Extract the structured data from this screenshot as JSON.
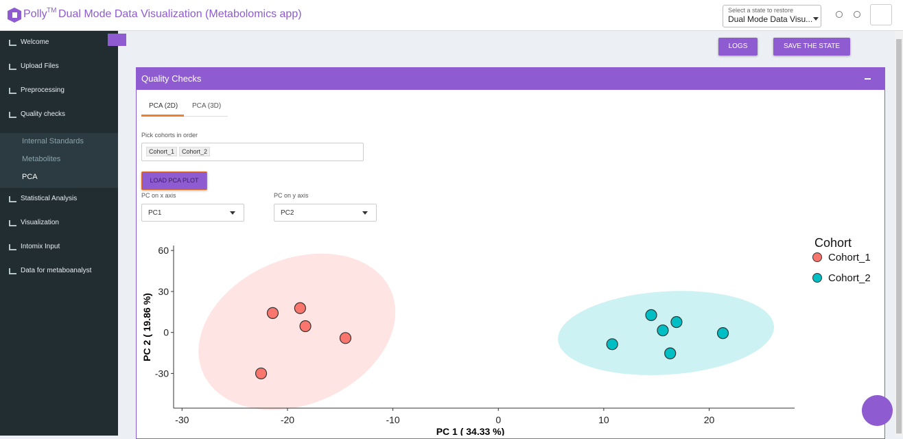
{
  "header": {
    "brand": "Polly",
    "trademark": "TM",
    "title": "Dual Mode Data Visualization (Metabolomics app)",
    "state_label": "Select a state to restore",
    "state_value": "Dual Mode Data Visu..."
  },
  "sidebar": {
    "items": [
      "Welcome",
      "Upload Files",
      "Preprocessing",
      "Quality checks"
    ],
    "subitems": [
      "Internal Standards",
      "Metabolites",
      "PCA"
    ],
    "more_items": [
      "Statistical Analysis",
      "Visualization",
      "Intomix Input",
      "Data for metaboanalyst"
    ]
  },
  "toolbar": {
    "logs": "LOGS",
    "save": "SAVE THE STATE"
  },
  "panel": {
    "title": "Quality Checks",
    "tabs": [
      "PCA (2D)",
      "PCA (3D)"
    ],
    "cohort_label": "Pick cohorts in order",
    "cohorts": [
      "Cohort_1",
      "Cohort_2"
    ],
    "load_button": "LOAD PCA PLOT",
    "x_select_label": "PC on x axis",
    "x_select_value": "PC1",
    "y_select_label": "PC on y axis",
    "y_select_value": "PC2"
  },
  "chart_data": {
    "type": "scatter",
    "x_label": "PC 1 ( 34.33 %)",
    "y_label": "PC 2 ( 19.86 %)",
    "legend_title": "Cohort",
    "legend_position": "right",
    "grid": false,
    "series": [
      {
        "name": "Cohort_1",
        "color": "#F8766D",
        "x": [
          -21.4,
          -18.8,
          -18.3,
          -14.5,
          -22.5
        ],
        "values": [
          14.2,
          17.8,
          4.6,
          -4.1,
          -30
        ]
      },
      {
        "name": "Cohort_2",
        "color": "#00BFC4",
        "x": [
          14.5,
          16.9,
          15.6,
          21.3,
          10.8,
          16.3
        ],
        "values": [
          12.7,
          7.6,
          1.5,
          -0.5,
          -8.6,
          -15.3
        ]
      }
    ],
    "xlim": [
      -30.8,
      28.1
    ],
    "ylim": [
      -55.4,
      63.6
    ],
    "xticks": [
      -30,
      -20,
      -10,
      0,
      10,
      20
    ],
    "yticks": [
      -30,
      0,
      30,
      60
    ]
  }
}
